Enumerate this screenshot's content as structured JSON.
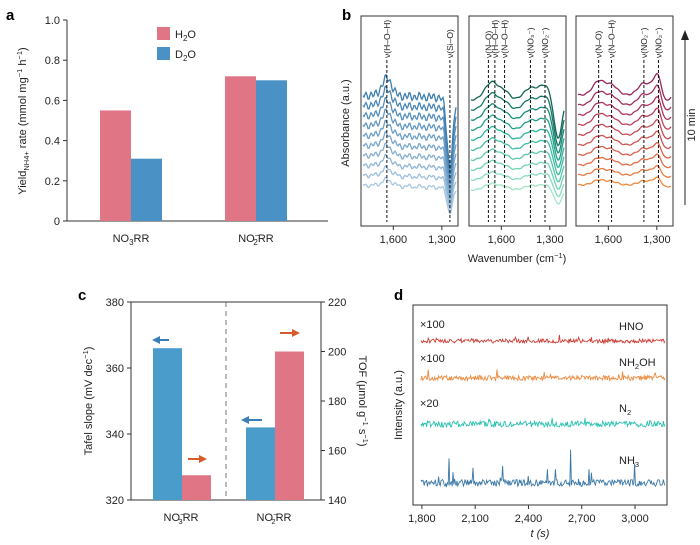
{
  "panels": [
    "a",
    "b",
    "c",
    "d"
  ],
  "colors": {
    "h2o": "#e07585",
    "d2o": "#4a92c6",
    "tafel": "#4a9ccb",
    "tof": "#e07585",
    "arrow_tafel": "#3a7fb8",
    "arrow_tof": "#d65a2a",
    "hno": "#cd3e35",
    "nh2oh": "#ed8a3e",
    "n2": "#2cc1b1",
    "nh3": "#3b78a6"
  },
  "chart_data": [
    {
      "id": "a",
      "type": "bar",
      "ylabel": "Yield",
      "ylabel_sub": "NH4+",
      "ylabel_rest": " rate (mmol mg",
      "ylabel_sup": "−1",
      "ylabel_tail": " h",
      "ylabel_sup2": "−1",
      "ylabel_close": ")",
      "ylim": [
        0,
        1.0
      ],
      "yticks": [
        "0",
        "0.2",
        "0.4",
        "0.6",
        "0.8",
        "1.0"
      ],
      "categories": [
        {
          "main": "NO",
          "sub": "3",
          "sup": "",
          "tail": "RR"
        },
        {
          "main": "NO",
          "sub": "2",
          "sup": "−",
          "tail": "RR"
        }
      ],
      "series": [
        {
          "name": "H2O",
          "legend_main": "H",
          "legend_sub": "2",
          "legend_tail": "O",
          "values": [
            0.55,
            0.72
          ]
        },
        {
          "name": "D2O",
          "legend_main": "D",
          "legend_sub": "2",
          "legend_tail": "O",
          "values": [
            0.31,
            0.7
          ]
        }
      ]
    },
    {
      "id": "b",
      "type": "line",
      "xlabel": "Wavenumber (cm",
      "xlabel_sup": "−1",
      "xlabel_close": ")",
      "ylabel": "Absorbance (a.u.)",
      "time_label": "10 min",
      "subpanels": [
        {
          "xticks": [
            "1,600",
            "1,300"
          ],
          "xrange": [
            1800,
            1200
          ],
          "annotations": [
            "ν(H–O–H)",
            "ν(Si–O)"
          ],
          "ann_wn": [
            1640,
            1250
          ],
          "palette": [
            "#a9c6e1",
            "#9dbedc",
            "#91b6d6",
            "#85aed1",
            "#79a6cc",
            "#6d9ec6",
            "#6196c1",
            "#558ebb",
            "#4986b6",
            "#3d7eb0"
          ]
        },
        {
          "xticks": [
            "1,600",
            "1,300"
          ],
          "xrange": [
            1800,
            1200
          ],
          "annotations": [
            "ν(N–O)",
            "ν(H–O–H)",
            "ν(N–O–H)",
            "ν(NO₃⁻)",
            "ν(NO₂⁻)"
          ],
          "ann_wn": [
            1680,
            1640,
            1580,
            1420,
            1330
          ],
          "palette": [
            "#9ee6c4",
            "#87dcbd",
            "#70d2b5",
            "#59c8ad",
            "#42bea5",
            "#2cb49d",
            "#21a08b",
            "#1b8c78",
            "#167866",
            "#126554"
          ]
        },
        {
          "xticks": [
            "1,600",
            "1,300"
          ],
          "xrange": [
            1800,
            1200
          ],
          "annotations": [
            "ν(N–O)",
            "ν(N–O–H)",
            "ν(NO₂⁻)",
            "ν(NO₂⁻)"
          ],
          "ann_wn": [
            1660,
            1580,
            1380,
            1290
          ],
          "palette": [
            "#f0883a",
            "#e97a40",
            "#e26d46",
            "#da604c",
            "#d15451",
            "#c74956",
            "#bc3f5a",
            "#b0365c",
            "#a32e5d",
            "#96285d"
          ]
        }
      ]
    },
    {
      "id": "c",
      "type": "bar",
      "ylabel_left": "Tafel slope (mV dec",
      "ylabel_left_sup": "−1",
      "ylabel_left_close": ")",
      "ylabel_right": "TOF (μmol g",
      "ylabel_right_sup": "−1",
      "ylabel_right_tail": " s",
      "ylabel_right_sup2": "−1",
      "ylabel_right_close": ")",
      "ylim_left": [
        320,
        380
      ],
      "ylim_right": [
        140,
        220
      ],
      "yticks_left": [
        "320",
        "340",
        "360",
        "380"
      ],
      "yticks_right": [
        "140",
        "160",
        "180",
        "200",
        "220"
      ],
      "categories": [
        {
          "main": "NO",
          "sub": "3",
          "sup": "−",
          "tail": "RR"
        },
        {
          "main": "NO",
          "sub": "2",
          "sup": "−",
          "tail": "RR"
        }
      ],
      "series": [
        {
          "name": "Tafel slope",
          "axis": "left",
          "values": [
            366,
            342
          ]
        },
        {
          "name": "TOF",
          "axis": "right",
          "values": [
            150,
            200
          ]
        }
      ]
    },
    {
      "id": "d",
      "type": "line",
      "xlabel": "t (s)",
      "ylabel": "Intensity (a.u.)",
      "xticks": [
        1800,
        2100,
        2400,
        2700,
        3000
      ],
      "xtick_labels": [
        "1,800",
        "2,100",
        "2,400",
        "2,700",
        "3,000"
      ],
      "xlim": [
        1750,
        3180
      ],
      "series": [
        {
          "name": "HNO",
          "label_main": "HNO",
          "label_sub": "",
          "multiplier": "×100"
        },
        {
          "name": "NH2OH",
          "label_main": "NH",
          "label_sub": "2",
          "label_tail": "OH",
          "multiplier": "×100"
        },
        {
          "name": "N2",
          "label_main": "N",
          "label_sub": "2",
          "label_tail": "",
          "multiplier": "×20"
        },
        {
          "name": "NH3",
          "label_main": "NH",
          "label_sub": "3",
          "label_tail": "",
          "multiplier": ""
        }
      ]
    }
  ]
}
